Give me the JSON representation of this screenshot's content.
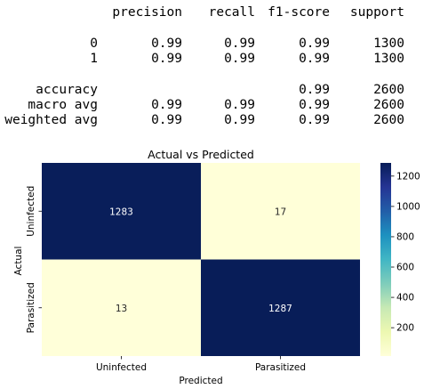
{
  "report": {
    "headers": [
      "precision",
      "recall",
      "f1-score",
      "support"
    ],
    "rows": [
      {
        "label": "0",
        "values": [
          "0.99",
          "0.99",
          "0.99",
          "1300"
        ]
      },
      {
        "label": "1",
        "values": [
          "0.99",
          "0.99",
          "0.99",
          "1300"
        ]
      },
      {
        "label": "accuracy",
        "values": [
          "",
          "",
          "0.99",
          "2600"
        ]
      },
      {
        "label": "macro avg",
        "values": [
          "0.99",
          "0.99",
          "0.99",
          "2600"
        ]
      },
      {
        "label": "weighted avg",
        "values": [
          "0.99",
          "0.99",
          "0.99",
          "2600"
        ]
      }
    ]
  },
  "chart_data": {
    "type": "heatmap",
    "title": "Actual vs Predicted",
    "xlabel": "Predicted",
    "ylabel": "Actual",
    "x_categories": [
      "Uninfected",
      "Parasitized"
    ],
    "y_categories": [
      "Uninfected",
      "Parasitized"
    ],
    "values": [
      [
        1283,
        17
      ],
      [
        13,
        1287
      ]
    ],
    "colormap": "YlGnBu",
    "colorbar": {
      "range": [
        13,
        1287
      ],
      "ticks": [
        200,
        400,
        600,
        800,
        1000,
        1200
      ]
    },
    "colors": {
      "low": "#ffffd9",
      "high": "#081d58",
      "text_on_dark": "#ffffff",
      "text_on_light": "#262626"
    }
  }
}
